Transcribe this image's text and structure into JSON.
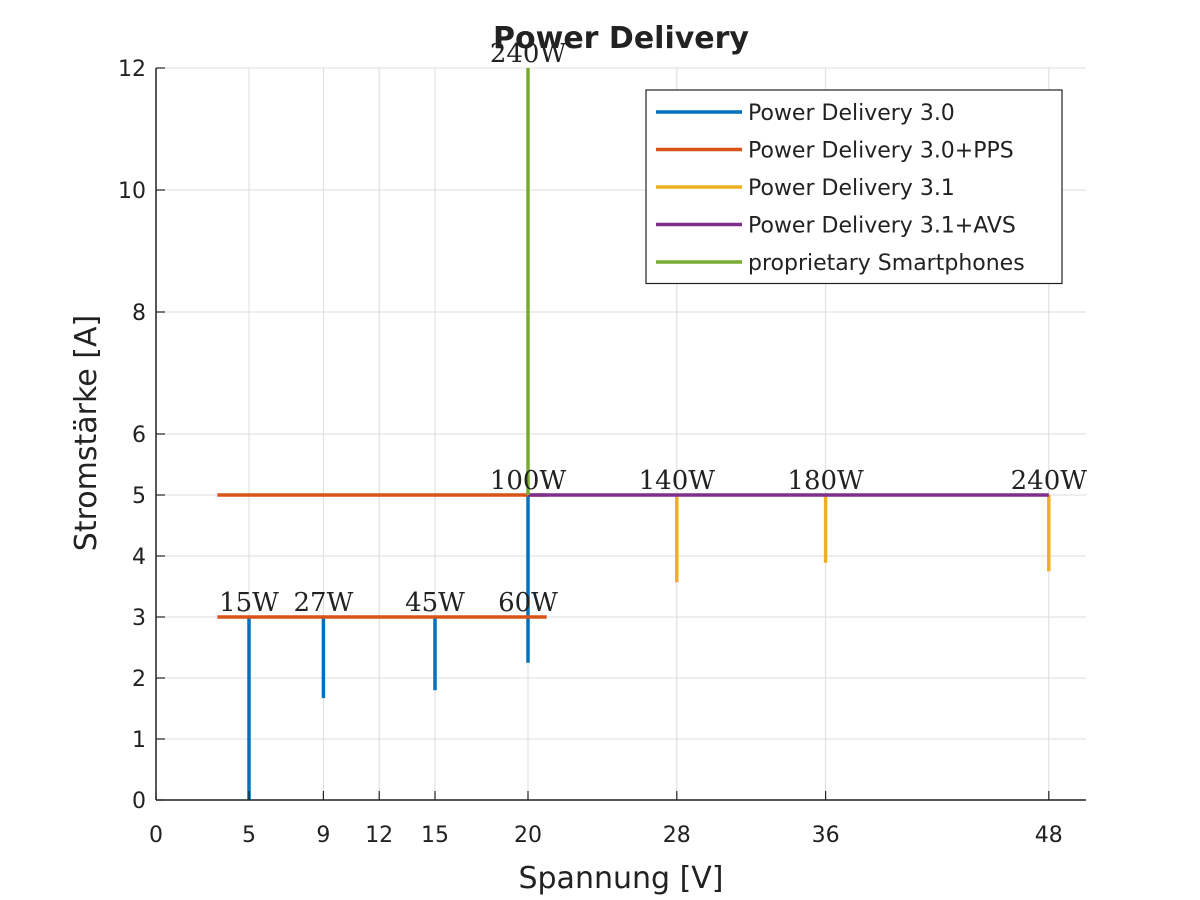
{
  "chart_data": {
    "type": "line",
    "title": "Power Delivery",
    "xlabel": "Spannung [V]",
    "ylabel": "Stromstärke [A]",
    "xlim": [
      0,
      50
    ],
    "ylim": [
      0,
      12
    ],
    "xticks": [
      0,
      5,
      9,
      12,
      15,
      20,
      28,
      36,
      48
    ],
    "yticks": [
      0,
      1,
      2,
      3,
      4,
      5,
      6,
      8,
      10,
      12
    ],
    "grid": true,
    "legend_position": "top-right",
    "series": [
      {
        "name": "Power Delivery 3.0",
        "color": "#0072BD",
        "segments": [
          [
            [
              5,
              0
            ],
            [
              5,
              3
            ]
          ],
          [
            [
              9,
              1.67
            ],
            [
              9,
              3
            ]
          ],
          [
            [
              15,
              1.8
            ],
            [
              15,
              3
            ]
          ],
          [
            [
              20,
              2.25
            ],
            [
              20,
              5
            ]
          ]
        ]
      },
      {
        "name": "Power Delivery 3.0+PPS",
        "color": "#D95319",
        "segments": [
          [
            [
              3.3,
              3
            ],
            [
              21,
              3
            ]
          ],
          [
            [
              3.3,
              5
            ],
            [
              21,
              5
            ]
          ]
        ]
      },
      {
        "name": "Power Delivery 3.1",
        "color": "#EDB120",
        "segments": [
          [
            [
              28,
              3.57
            ],
            [
              28,
              5
            ]
          ],
          [
            [
              36,
              3.89
            ],
            [
              36,
              5
            ]
          ],
          [
            [
              48,
              3.75
            ],
            [
              48,
              5
            ]
          ]
        ]
      },
      {
        "name": "Power Delivery 3.1+AVS",
        "color": "#7E2F8E",
        "segments": [
          [
            [
              20,
              5
            ],
            [
              48,
              5
            ]
          ]
        ]
      },
      {
        "name": "proprietary Smartphones",
        "color": "#77AC30",
        "segments": [
          [
            [
              20,
              5
            ],
            [
              20,
              12
            ]
          ]
        ]
      }
    ],
    "annotations": [
      {
        "text": "15W",
        "x": 5,
        "y": 3
      },
      {
        "text": "27W",
        "x": 9,
        "y": 3
      },
      {
        "text": "45W",
        "x": 15,
        "y": 3
      },
      {
        "text": "60W",
        "x": 20,
        "y": 3
      },
      {
        "text": "100W",
        "x": 20,
        "y": 5
      },
      {
        "text": "140W",
        "x": 28,
        "y": 5
      },
      {
        "text": "180W",
        "x": 36,
        "y": 5
      },
      {
        "text": "240W",
        "x": 48,
        "y": 5
      },
      {
        "text": "240W",
        "x": 20,
        "y": 12
      }
    ]
  }
}
